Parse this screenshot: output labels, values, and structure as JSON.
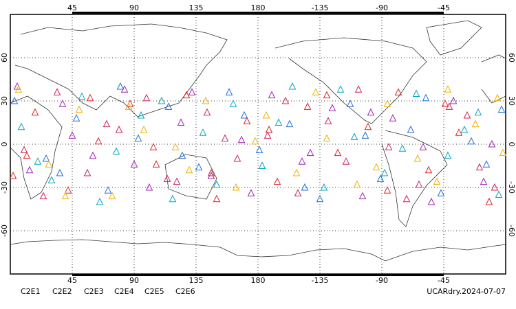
{
  "chart_data": {
    "type": "scatter",
    "footer": "UCARdry.2024-07-07",
    "xlim": [
      0,
      360
    ],
    "xticks": [
      45,
      90,
      135,
      180,
      {
        "value": 225,
        "label": "-135"
      },
      {
        "value": 270,
        "label": "-90"
      },
      {
        "value": 315,
        "label": "-45"
      }
    ],
    "ylim": [
      -90,
      90
    ],
    "yticks": [
      60,
      30,
      0,
      -30,
      -60
    ],
    "grid": true,
    "series": [
      {
        "name": "C2E1",
        "color": "#00a8c0",
        "x": [
          8,
          30,
          52,
          77,
          95,
          118,
          140,
          162,
          183,
          205,
          228,
          250,
          272,
          295,
          318,
          340,
          355,
          20,
          65,
          110,
          150,
          195,
          240,
          285,
          330
        ],
        "values": [
          12,
          -25,
          33,
          -5,
          20,
          -38,
          8,
          28,
          -15,
          40,
          -30,
          5,
          -20,
          35,
          -8,
          22,
          -35,
          -12,
          -40,
          30,
          -28,
          15,
          38,
          -3,
          10
        ]
      },
      {
        "name": "C2E2",
        "color": "#a020b8",
        "x": [
          14,
          38,
          60,
          83,
          101,
          124,
          146,
          168,
          190,
          212,
          234,
          256,
          278,
          300,
          322,
          344,
          5,
          45,
          90,
          132,
          175,
          218,
          262,
          306,
          350
        ],
        "values": [
          -18,
          28,
          -8,
          38,
          -30,
          15,
          -22,
          3,
          34,
          -12,
          25,
          -36,
          18,
          -2,
          30,
          -26,
          40,
          6,
          -14,
          36,
          -34,
          -6,
          22,
          -40,
          0
        ]
      },
      {
        "name": "C2E3",
        "color": "#1e6ee0",
        "x": [
          3,
          26,
          48,
          71,
          93,
          115,
          137,
          159,
          181,
          203,
          225,
          247,
          269,
          291,
          313,
          335,
          357,
          36,
          80,
          125,
          170,
          214,
          258,
          302,
          346
        ],
        "values": [
          30,
          -10,
          18,
          -32,
          4,
          26,
          -16,
          36,
          -4,
          14,
          -38,
          28,
          -24,
          10,
          -34,
          2,
          24,
          -20,
          40,
          -8,
          20,
          -30,
          6,
          32,
          -14
        ]
      },
      {
        "name": "C2E4",
        "color": "#d0205a",
        "x": [
          10,
          34,
          56,
          79,
          99,
          121,
          143,
          165,
          187,
          209,
          231,
          253,
          275,
          297,
          319,
          341,
          24,
          70,
          114,
          156,
          200,
          244,
          288,
          332,
          352
        ],
        "values": [
          -4,
          36,
          -20,
          10,
          32,
          -26,
          22,
          -10,
          6,
          -34,
          16,
          38,
          -2,
          -28,
          26,
          -16,
          -36,
          14,
          -24,
          4,
          30,
          -12,
          -38,
          20,
          -30
        ]
      },
      {
        "name": "C2E5",
        "color": "#e02020",
        "x": [
          18,
          42,
          64,
          87,
          106,
          128,
          150,
          172,
          194,
          216,
          238,
          260,
          282,
          304,
          326,
          348,
          12,
          58,
          104,
          146,
          188,
          230,
          274,
          316,
          2
        ],
        "values": [
          22,
          -32,
          2,
          28,
          -14,
          34,
          -38,
          16,
          -26,
          26,
          -6,
          12,
          36,
          -18,
          8,
          -40,
          -8,
          32,
          -2,
          -20,
          10,
          34,
          -32,
          28,
          -22
        ]
      },
      {
        "name": "C2E6",
        "color": "#f0b000",
        "x": [
          6,
          28,
          50,
          74,
          97,
          120,
          142,
          164,
          186,
          208,
          230,
          252,
          274,
          296,
          318,
          338,
          358,
          40,
          86,
          130,
          178,
          222,
          266,
          310,
          354
        ],
        "values": [
          38,
          -14,
          24,
          -36,
          10,
          -2,
          30,
          -30,
          20,
          -20,
          4,
          -28,
          28,
          -10,
          38,
          14,
          -6,
          -36,
          26,
          -18,
          2,
          36,
          -16,
          -26,
          32
        ]
      }
    ]
  }
}
